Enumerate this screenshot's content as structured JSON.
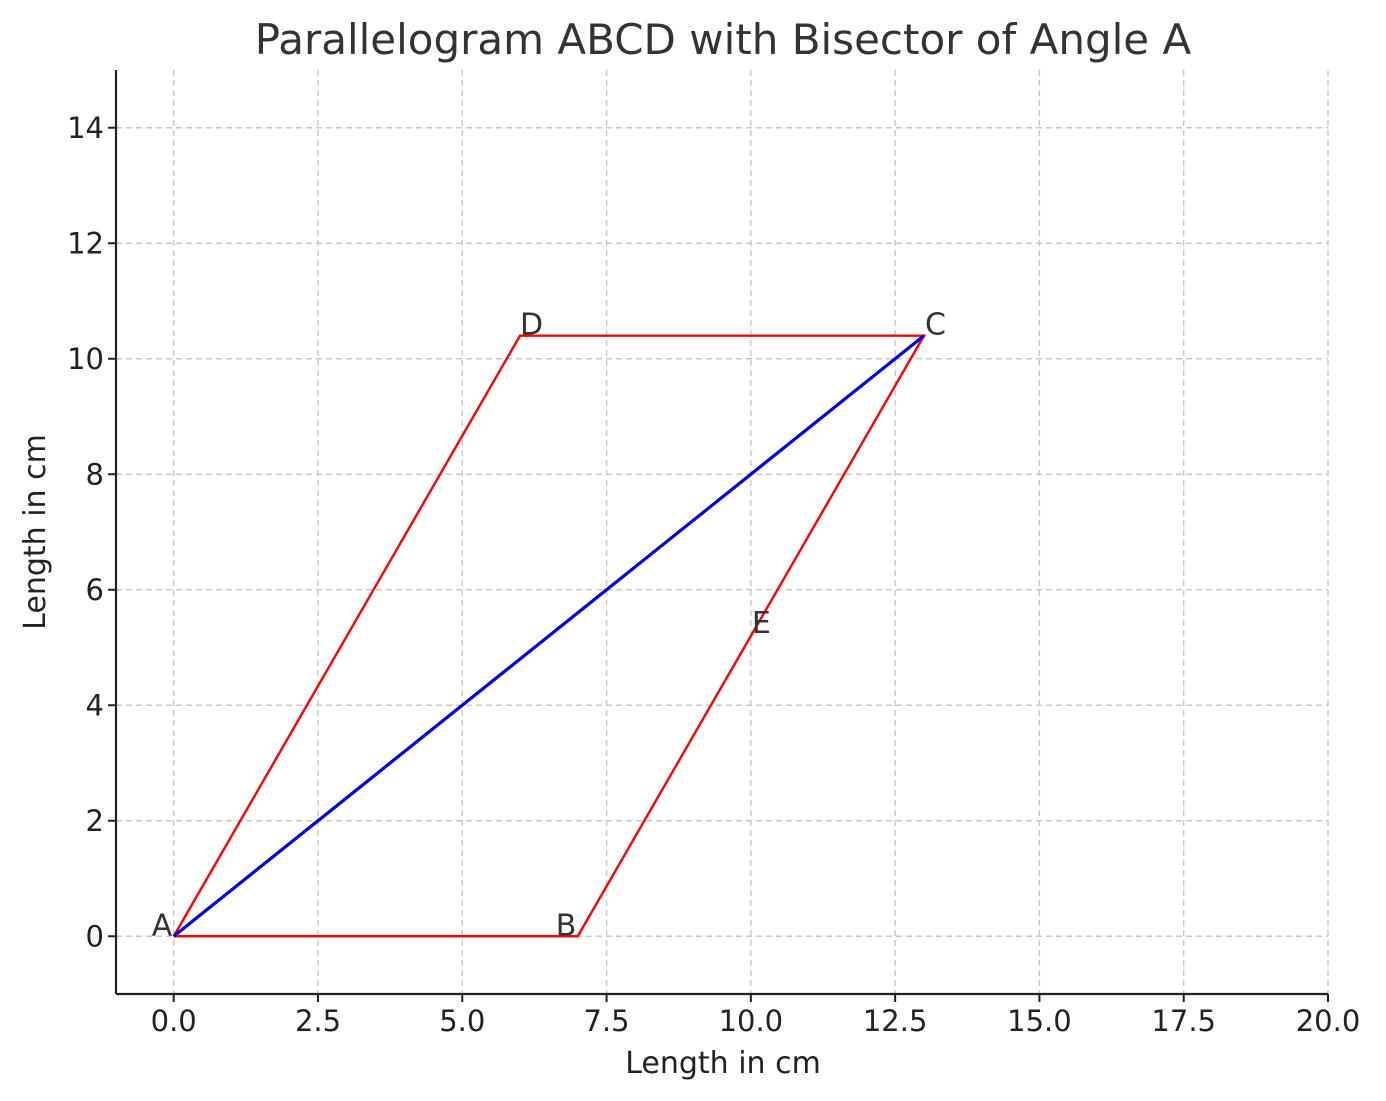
{
  "chart_data": {
    "type": "line",
    "title": "Parallelogram ABCD with Bisector of Angle A",
    "xlabel": "Length in cm",
    "ylabel": "Length in cm",
    "xlim": [
      -1,
      20
    ],
    "ylim": [
      -1,
      15
    ],
    "x_ticks": [
      0.0,
      2.5,
      5.0,
      7.5,
      10.0,
      12.5,
      15.0,
      17.5,
      20.0
    ],
    "x_tick_labels": [
      "0.0",
      "2.5",
      "5.0",
      "7.5",
      "10.0",
      "12.5",
      "15.0",
      "17.5",
      "20.0"
    ],
    "y_ticks": [
      0,
      2,
      4,
      6,
      8,
      10,
      12,
      14
    ],
    "y_tick_labels": [
      "0",
      "2",
      "4",
      "6",
      "8",
      "10",
      "12",
      "14"
    ],
    "grid": true,
    "series": [
      {
        "color": "#ff0000",
        "points": [
          [
            0,
            0
          ],
          [
            7,
            0
          ],
          [
            13,
            10.4
          ],
          [
            6,
            10.4
          ],
          [
            0,
            0
          ]
        ]
      },
      {
        "color": "#0000dd",
        "points": [
          [
            0,
            0
          ],
          [
            13,
            10.4
          ]
        ]
      }
    ],
    "point_labels": [
      {
        "text": "A",
        "x": 0,
        "y": 0
      },
      {
        "text": "B",
        "x": 7,
        "y": 0
      },
      {
        "text": "C",
        "x": 13,
        "y": 10.4
      },
      {
        "text": "D",
        "x": 6,
        "y": 10.4
      },
      {
        "text": "E",
        "x": 10,
        "y": 5.2
      }
    ]
  }
}
